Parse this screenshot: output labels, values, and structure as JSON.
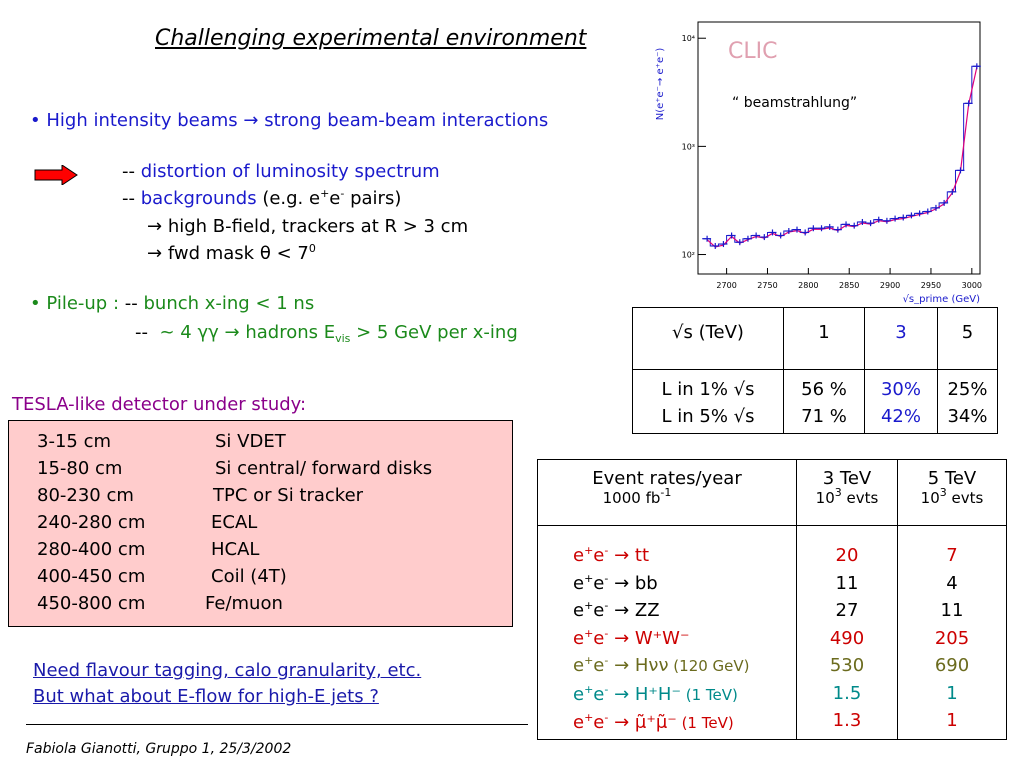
{
  "title": "Challenging experimental environment",
  "bullet1": {
    "dot": "•",
    "text": "High intensity beams",
    "arrow": "→",
    "text2": "strong beam-beam interactions"
  },
  "dash": "--",
  "sub1": {
    "text": "distortion of luminosity spectrum"
  },
  "sub2": {
    "label": "backgrounds",
    "extra_pre": "(e.g. e",
    "extra_mid": "e",
    "extra_post": "pairs)",
    "plus": "+",
    "minus": "-"
  },
  "sub3": {
    "arrow": "→",
    "text": "high B-field, trackers at R > 3 cm"
  },
  "sub4": {
    "arrow": "→",
    "text_pre": "fwd mask",
    "theta": "θ",
    "text_post": "< 7",
    "sup": "0"
  },
  "bullet2": {
    "dot": "•",
    "label": "Pile-up :",
    "dash": "--",
    "text": "bunch x-ing < 1 ns"
  },
  "bullet2b": {
    "dash": "--",
    "pre": "~ 4",
    "gg": "γγ",
    "arrow": "→",
    "mid": "hadrons E",
    "sub": "vis",
    "post": "> 5 GeV per x-ing"
  },
  "detector": {
    "heading": "TESLA-like detector under study:",
    "rows": [
      {
        "range": "3-15 cm",
        "what": "Si VDET"
      },
      {
        "range": "15-80 cm",
        "what": "Si central/ forward disks"
      },
      {
        "range": "80-230 cm",
        "what": "TPC or Si tracker"
      },
      {
        "range": "240-280 cm",
        "what": "ECAL"
      },
      {
        "range": "280-400 cm",
        "what": "HCAL"
      },
      {
        "range": "400-450 cm",
        "what": "Coil (4T)"
      },
      {
        "range": "450-800 cm",
        "what": "Fe/muon"
      }
    ]
  },
  "need": {
    "line1": "Need flavour tagging, calo granularity, etc.",
    "line2": "But what about E-flow for high-E jets ?"
  },
  "footer": "Fabiola Gianotti,  Gruppo 1, 25/3/2002",
  "energy_table": {
    "h_label": "√s  (TeV)",
    "h1": "1",
    "h2": "3",
    "h3": "5",
    "r1_label": "L in 1% √s",
    "r1_v1": "56 %",
    "r1_v2": "30%",
    "r1_v3": "25%",
    "r2_label": "L in 5% √s",
    "r2_v1": "71 %",
    "r2_v2": "42%",
    "r2_v3": "34%"
  },
  "rate_table": {
    "h_title": "Event rates/year",
    "h_lumi_pre": "1000 fb",
    "h_lumi_sup": "-1",
    "h_c1": "3 TeV",
    "h_c2": "5 TeV",
    "h_evts_pre": "10",
    "h_evts_sup": "3",
    "h_evts_post": " evts",
    "rows": [
      {
        "pre": "e",
        "p": "+",
        "mid": "e",
        "m": "-",
        "arrow": "→",
        "proc": "tt",
        "note": "",
        "v3": "20",
        "v5": "7",
        "color": "#cc0000"
      },
      {
        "pre": "e",
        "p": "+",
        "mid": "e",
        "m": "-",
        "arrow": "→",
        "proc": "bb",
        "note": "",
        "v3": "11",
        "v5": "4",
        "color": "#000000"
      },
      {
        "pre": "e",
        "p": "+",
        "mid": "e",
        "m": "-",
        "arrow": "→",
        "proc": "ZZ",
        "note": "",
        "v3": "27",
        "v5": "11",
        "color": "#000000"
      },
      {
        "pre": "e",
        "p": "+",
        "mid": "e",
        "m": "-",
        "arrow": "→",
        "proc": "W⁺W⁻",
        "note": "",
        "v3": "490",
        "v5": "205",
        "color": "#cc0000"
      },
      {
        "pre": "e",
        "p": "+",
        "mid": "e",
        "m": "-",
        "arrow": "→",
        "proc": "Hνν",
        "note": "(120 GeV)",
        "v3": "530",
        "v5": "690",
        "color": "#6b6b1e"
      },
      {
        "pre": "e",
        "p": "+",
        "mid": "e",
        "m": "-",
        "arrow": "→",
        "proc": "H⁺H⁻",
        "note": "(1 TeV)",
        "v3": "1.5",
        "v5": "1",
        "color": "#008a8a"
      },
      {
        "pre": "e",
        "p": "+",
        "mid": "e",
        "m": "-",
        "arrow": "→",
        "proc": "μ̃⁺μ̃⁻",
        "note": "(1 TeV)",
        "v3": "1.3",
        "v5": "1",
        "color": "#cc0000"
      }
    ]
  },
  "chart_data": {
    "type": "line",
    "brand": "CLIC",
    "annotation": "“ beamstrahlung”",
    "ylabel": "N(e⁺e⁻→ e⁺e⁻)",
    "xlabel": "√s_prime (GeV)",
    "xticks": [
      "2700",
      "2750",
      "2800",
      "2850",
      "2900",
      "2950",
      "3000"
    ],
    "yticks": [
      "10²",
      "10³",
      "10⁴"
    ],
    "xlim": [
      2665,
      3010
    ],
    "ylog_lim": [
      1.82,
      4.15
    ],
    "x": [
      2670,
      2680,
      2690,
      2700,
      2710,
      2720,
      2730,
      2740,
      2750,
      2760,
      2770,
      2780,
      2790,
      2800,
      2810,
      2820,
      2830,
      2840,
      2850,
      2860,
      2870,
      2880,
      2890,
      2900,
      2910,
      2920,
      2930,
      2940,
      2950,
      2960,
      2970,
      2980,
      2990,
      3000
    ],
    "y": [
      140,
      120,
      125,
      150,
      130,
      140,
      150,
      145,
      160,
      150,
      165,
      170,
      160,
      175,
      175,
      180,
      170,
      190,
      185,
      200,
      195,
      210,
      205,
      215,
      220,
      230,
      240,
      250,
      270,
      300,
      380,
      600,
      2500,
      5500
    ],
    "series": [
      {
        "name": "",
        "color": "#e0007a"
      },
      {
        "name": "",
        "color": "#1a1acc"
      }
    ],
    "colors": {
      "axis_label": "#1a1acc",
      "brand": "#e0a0b0",
      "bg_frame": "#000000"
    }
  }
}
